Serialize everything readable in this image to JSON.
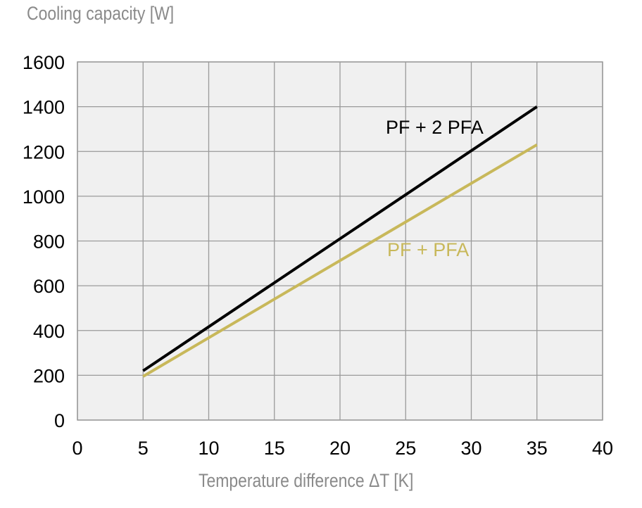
{
  "chart_data": {
    "type": "line",
    "title": "",
    "ylabel": "Cooling capacity [W]",
    "xlabel": "Temperature difference ΔT [K]",
    "xlim": [
      0,
      40
    ],
    "ylim": [
      0,
      1600
    ],
    "xticks": [
      0,
      5,
      10,
      15,
      20,
      25,
      30,
      35,
      40
    ],
    "yticks": [
      0,
      200,
      400,
      600,
      800,
      1000,
      1200,
      1400,
      1600
    ],
    "grid": true,
    "series": [
      {
        "name": "PF + 2 PFA",
        "color": "#000000",
        "x": [
          5,
          35
        ],
        "y": [
          220,
          1400
        ]
      },
      {
        "name": "PF + PFA",
        "color": "#c8b85a",
        "x": [
          5,
          35
        ],
        "y": [
          195,
          1230
        ]
      }
    ],
    "background": "#f0f0f0",
    "grid_color": "#9a9a9a"
  }
}
